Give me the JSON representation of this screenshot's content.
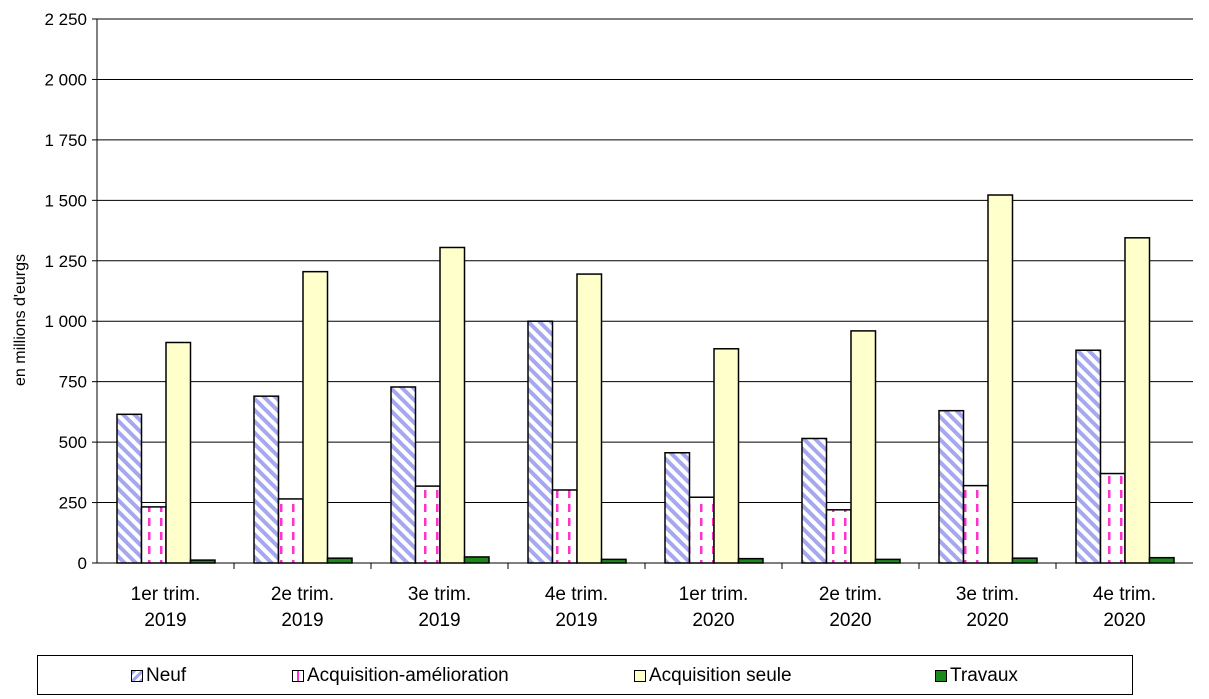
{
  "chart_data": {
    "type": "bar",
    "ylabel": "en millions d'eurgs",
    "ylim": [
      0,
      2250
    ],
    "yticks": [
      0,
      250,
      500,
      750,
      1000,
      1250,
      1500,
      1750,
      2000,
      2250
    ],
    "ytick_labels": [
      "0",
      "250",
      "500",
      "750",
      "1 000",
      "1 250",
      "1 500",
      "1 750",
      "2 000",
      "2 250"
    ],
    "categories": [
      [
        "1er trim.",
        "2019"
      ],
      [
        "2e trim.",
        "2019"
      ],
      [
        "3e trim.",
        "2019"
      ],
      [
        "4e trim.",
        "2019"
      ],
      [
        "1er trim.",
        "2020"
      ],
      [
        "2e trim.",
        "2020"
      ],
      [
        "3e trim.",
        "2020"
      ],
      [
        "4e trim.",
        "2020"
      ]
    ],
    "series": [
      {
        "name": "Neuf",
        "values": [
          615,
          690,
          728,
          1000,
          456,
          515,
          630,
          880
        ]
      },
      {
        "name": "Acquisition-amélioration",
        "values": [
          232,
          265,
          318,
          302,
          272,
          220,
          320,
          370
        ]
      },
      {
        "name": "Acquisition seule",
        "values": [
          912,
          1205,
          1305,
          1195,
          886,
          960,
          1522,
          1345
        ]
      },
      {
        "name": "Travaux",
        "values": [
          12,
          20,
          25,
          15,
          18,
          15,
          20,
          22
        ]
      }
    ],
    "grid": true,
    "legend_position": "bottom"
  },
  "colors": {
    "neuf": "#a5a8ee",
    "acq_amelioration": "#ff33cc",
    "acq_seule": "#ffffcc",
    "travaux": "#1a8a1a"
  }
}
